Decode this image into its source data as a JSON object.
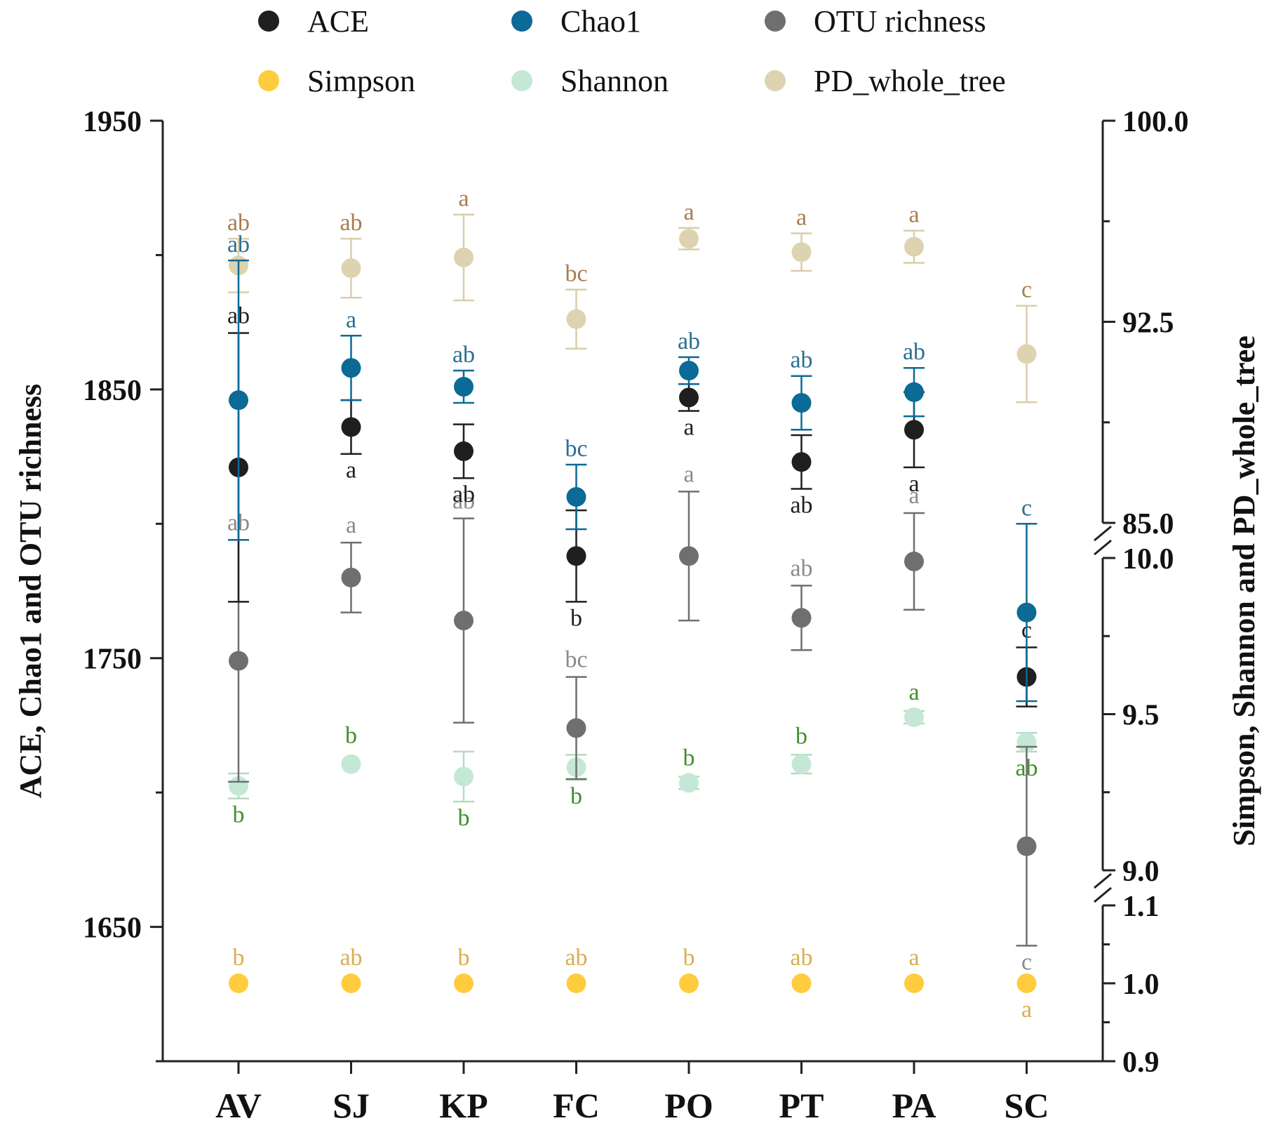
{
  "chart_data": {
    "type": "scatter",
    "title": "",
    "categories": [
      "AV",
      "SJ",
      "KP",
      "FC",
      "PO",
      "PT",
      "PA",
      "SC"
    ],
    "ylabel_left": "ACE, Chao1 and OTU richness",
    "ylabel_right": "Simpson, Shannon and PD_whole_tree",
    "ylim_left": [
      1600,
      1950
    ],
    "left_ticks": [
      "1650",
      "1750",
      "1850",
      "1950"
    ],
    "right_axis_segments": [
      {
        "range": [
          0.9,
          1.1
        ],
        "ticks": [
          "0.9",
          "1.0",
          "1.1"
        ]
      },
      {
        "range": [
          9.0,
          10.0
        ],
        "ticks": [
          "9.0",
          "9.5",
          "10.0"
        ]
      },
      {
        "range": [
          85.0,
          100.0
        ],
        "ticks": [
          "85.0",
          "92.5",
          "100.0"
        ]
      }
    ],
    "legend_position": "top",
    "series": [
      {
        "name": "ACE",
        "axis": "left",
        "color": "#1f1f1f",
        "label_color": "#1f1f1f",
        "values": [
          1821,
          1836,
          1827,
          1788,
          1847,
          1823,
          1835,
          1743
        ],
        "errors": [
          50,
          10,
          10,
          17,
          5,
          10,
          14,
          11
        ],
        "letters": [
          "ab",
          "a",
          "ab",
          "b",
          "a",
          "ab",
          "a",
          "c"
        ]
      },
      {
        "name": "Chao1",
        "axis": "left",
        "color": "#0b6a96",
        "label_color": "#2a6f92",
        "values": [
          1846,
          1858,
          1851,
          1810,
          1857,
          1845,
          1849,
          1767
        ],
        "errors": [
          52,
          12,
          6,
          12,
          5,
          10,
          9,
          33
        ],
        "letters": [
          "ab",
          "a",
          "ab",
          "bc",
          "ab",
          "ab",
          "ab",
          "c"
        ]
      },
      {
        "name": "OTU richness",
        "axis": "left",
        "color": "#6f6f6f",
        "label_color": "#8a8a8a",
        "values": [
          1749,
          1780,
          1764,
          1724,
          1788,
          1765,
          1786,
          1680
        ],
        "errors": [
          45,
          13,
          38,
          19,
          24,
          12,
          18,
          37
        ],
        "letters": [
          "ab",
          "a",
          "ab",
          "bc",
          "a",
          "ab",
          "a",
          "c"
        ]
      },
      {
        "name": "Simpson",
        "axis": "right",
        "color": "#ffcc3d",
        "label_color": "#d6ae52",
        "values": [
          1.0,
          1.0,
          1.0,
          1.0,
          1.0,
          1.0,
          1.0,
          1.0
        ],
        "errors": [
          0,
          0,
          0,
          0,
          0,
          0,
          0,
          0
        ],
        "letters": [
          "b",
          "ab",
          "b",
          "ab",
          "b",
          "ab",
          "a",
          "a"
        ]
      },
      {
        "name": "Shannon",
        "axis": "right",
        "color": "#c5e8d6",
        "label_color": "#3f8f2a",
        "values": [
          9.27,
          9.34,
          9.3,
          9.33,
          9.28,
          9.34,
          9.49,
          9.41
        ],
        "errors": [
          0.04,
          0.0,
          0.08,
          0.04,
          0.02,
          0.03,
          0.02,
          0.03
        ],
        "letters": [
          "b",
          "b",
          "b",
          "b",
          "b",
          "b",
          "a",
          "ab"
        ]
      },
      {
        "name": "PD_whole_tree",
        "axis": "right",
        "color": "#ddd3b0",
        "label_color": "#a87c52",
        "values": [
          94.6,
          94.5,
          94.9,
          92.6,
          95.6,
          95.1,
          95.3,
          91.3
        ],
        "errors": [
          1.0,
          1.1,
          1.6,
          1.1,
          0.4,
          0.7,
          0.6,
          1.8
        ],
        "letters": [
          "ab",
          "ab",
          "a",
          "bc",
          "a",
          "a",
          "a",
          "c"
        ]
      }
    ]
  }
}
